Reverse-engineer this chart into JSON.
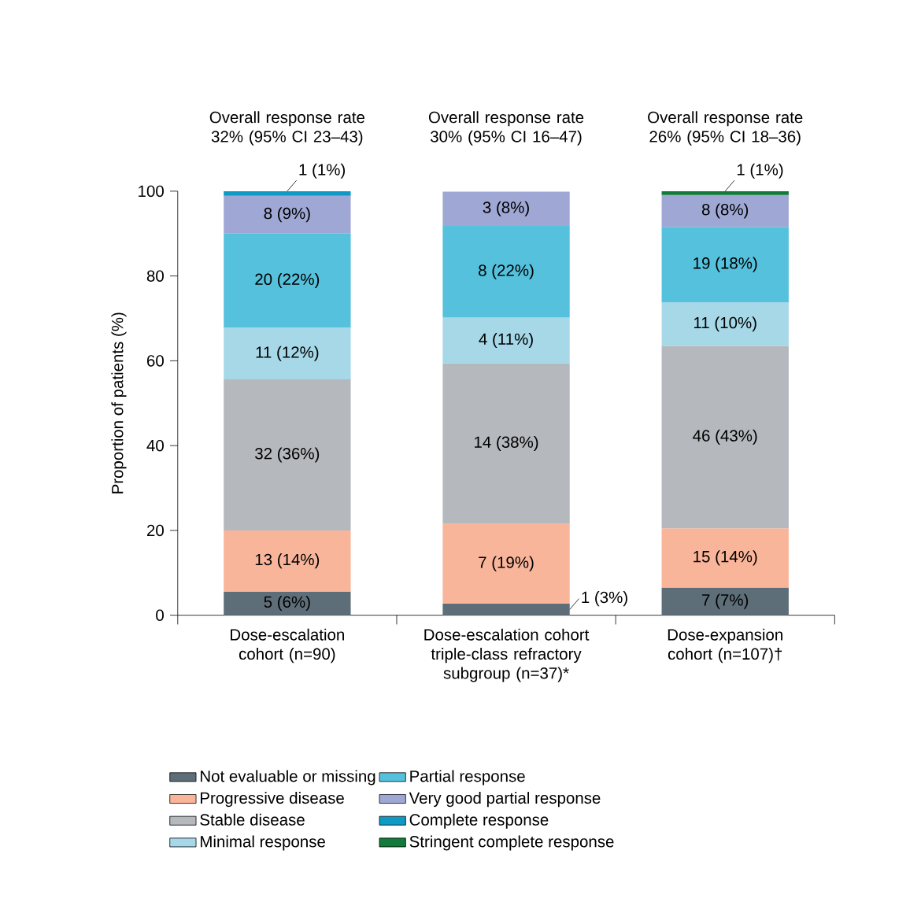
{
  "chart_data": {
    "type": "bar",
    "stacked": true,
    "ylabel": "Proportion of patients (%)",
    "categories": [
      "Dose-escalation cohort (n=90)",
      "Dose-escalation cohort triple-class refractory subgroup (n=37)*",
      "Dose-expansion cohort (n=107)†"
    ],
    "annotations": [
      "Overall response rate 32% (95% CI 23–43)",
      "Overall response rate 30% (95% CI 16–47)",
      "Overall response rate 26% (95% CI 18–36)"
    ],
    "ylim": [
      0,
      100
    ],
    "yticks": [
      0,
      20,
      40,
      60,
      80,
      100
    ],
    "legend": "bottom",
    "series": [
      {
        "name": "Not evaluable or missing",
        "color": "#5e6e78",
        "values": [
          5.6,
          2.7,
          6.5
        ],
        "value_labels": [
          "5 (6%)",
          "1 (3%)",
          "7 (7%)"
        ]
      },
      {
        "name": "Progressive disease",
        "color": "#f9b59a",
        "values": [
          14.4,
          18.9,
          14.0
        ],
        "value_labels": [
          "13 (14%)",
          "7 (19%)",
          "15 (14%)"
        ]
      },
      {
        "name": "Stable disease",
        "color": "#b5b8bc",
        "values": [
          35.6,
          37.8,
          43.0
        ],
        "value_labels": [
          "32 (36%)",
          "14 (38%)",
          "46 (43%)"
        ]
      },
      {
        "name": "Minimal response",
        "color": "#a6d8e8",
        "values": [
          12.2,
          10.8,
          10.3
        ],
        "value_labels": [
          "11 (12%)",
          "4 (11%)",
          "11 (10%)"
        ]
      },
      {
        "name": "Partial response",
        "color": "#55c1dc",
        "values": [
          22.2,
          21.6,
          17.8
        ],
        "value_labels": [
          "20 (22%)",
          "8 (22%)",
          "19 (18%)"
        ]
      },
      {
        "name": "Very good partial response",
        "color": "#9fa8d4",
        "values": [
          8.9,
          8.1,
          7.5
        ],
        "value_labels": [
          "8 (9%)",
          "3 (8%)",
          "8 (8%)"
        ]
      },
      {
        "name": "Complete response",
        "color": "#0e9ac4",
        "values": [
          1.1,
          null,
          null
        ],
        "value_labels": [
          "1 (1%)",
          null,
          null
        ]
      },
      {
        "name": "Stringent complete response",
        "color": "#127a3a",
        "values": [
          null,
          null,
          0.9
        ],
        "value_labels": [
          null,
          null,
          "1 (1%)"
        ]
      }
    ]
  }
}
